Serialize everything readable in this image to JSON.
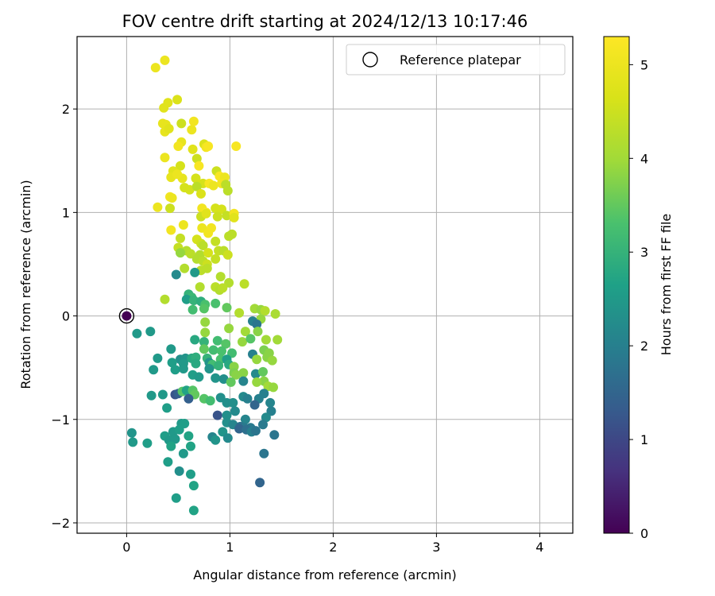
{
  "chart_data": {
    "type": "scatter",
    "title": "FOV centre drift starting at 2024/12/13 10:17:46",
    "xlabel": "Angular distance from reference (arcmin)",
    "ylabel": "Rotation from reference (arcmin)",
    "xlim": [
      -0.48,
      4.32
    ],
    "ylim": [
      -2.1,
      2.7
    ],
    "xticks": [
      0,
      1,
      2,
      3,
      4
    ],
    "yticks": [
      -2,
      -1,
      0,
      1,
      2
    ],
    "grid": true,
    "legend": {
      "label": "Reference platepar",
      "placement": "top-right"
    },
    "colorbar": {
      "label": "Hours from first FF file",
      "range": [
        0,
        5.3
      ],
      "ticks": [
        0,
        1,
        2,
        3,
        4,
        5
      ],
      "colormap": "viridis"
    },
    "reference_point": {
      "x": 0,
      "y": 0,
      "c": 0
    },
    "points": [
      [
        0.28,
        2.4,
        5.0
      ],
      [
        0.37,
        2.47,
        5.0
      ],
      [
        0.36,
        2.01,
        4.8
      ],
      [
        0.4,
        2.06,
        4.8
      ],
      [
        0.49,
        2.09,
        4.7
      ],
      [
        0.35,
        1.86,
        4.9
      ],
      [
        0.38,
        1.85,
        4.9
      ],
      [
        0.37,
        1.78,
        4.9
      ],
      [
        0.41,
        1.81,
        4.8
      ],
      [
        0.53,
        1.86,
        4.5
      ],
      [
        0.63,
        1.8,
        5.0
      ],
      [
        0.65,
        1.88,
        5.1
      ],
      [
        0.53,
        1.68,
        4.9
      ],
      [
        0.5,
        1.64,
        5.1
      ],
      [
        0.75,
        1.66,
        4.7
      ],
      [
        0.77,
        1.63,
        5.1
      ],
      [
        0.79,
        1.64,
        5.2
      ],
      [
        1.06,
        1.64,
        5.2
      ],
      [
        0.37,
        1.53,
        5.0
      ],
      [
        0.64,
        1.61,
        4.8
      ],
      [
        0.68,
        1.52,
        4.5
      ],
      [
        0.7,
        1.45,
        5.2
      ],
      [
        0.52,
        1.45,
        4.6
      ],
      [
        0.45,
        1.4,
        4.8
      ],
      [
        0.43,
        1.34,
        4.9
      ],
      [
        0.54,
        1.33,
        4.9
      ],
      [
        0.49,
        1.37,
        5.0
      ],
      [
        0.67,
        1.33,
        4.6
      ],
      [
        0.87,
        1.4,
        4.5
      ],
      [
        0.9,
        1.35,
        5.2
      ],
      [
        0.95,
        1.34,
        5.0
      ],
      [
        0.74,
        1.28,
        4.6
      ],
      [
        0.8,
        1.28,
        5.2
      ],
      [
        0.84,
        1.26,
        5.0
      ],
      [
        0.92,
        1.28,
        5.1
      ],
      [
        0.96,
        1.27,
        4.3
      ],
      [
        0.98,
        1.21,
        4.3
      ],
      [
        0.56,
        1.24,
        4.6
      ],
      [
        0.61,
        1.22,
        4.6
      ],
      [
        0.68,
        1.25,
        4.3
      ],
      [
        0.72,
        1.18,
        4.7
      ],
      [
        0.42,
        1.15,
        5.1
      ],
      [
        0.44,
        1.14,
        5.0
      ],
      [
        0.3,
        1.05,
        5.0
      ],
      [
        0.42,
        1.04,
        4.5
      ],
      [
        0.73,
        1.04,
        5.1
      ],
      [
        0.77,
        1.0,
        5.2
      ],
      [
        0.86,
        1.04,
        4.6
      ],
      [
        0.92,
        1.03,
        4.6
      ],
      [
        0.97,
        0.97,
        4.4
      ],
      [
        1.04,
        0.99,
        5.1
      ],
      [
        1.04,
        0.95,
        4.8
      ],
      [
        0.72,
        0.96,
        4.5
      ],
      [
        0.77,
        0.99,
        4.8
      ],
      [
        0.88,
        0.96,
        4.5
      ],
      [
        0.55,
        0.88,
        5.0
      ],
      [
        0.43,
        0.83,
        5.1
      ],
      [
        0.73,
        0.85,
        5.0
      ],
      [
        0.79,
        0.8,
        5.1
      ],
      [
        0.82,
        0.85,
        5.1
      ],
      [
        0.99,
        0.77,
        4.3
      ],
      [
        1.02,
        0.79,
        4.3
      ],
      [
        0.52,
        0.75,
        4.4
      ],
      [
        0.68,
        0.74,
        4.6
      ],
      [
        0.86,
        0.72,
        4.4
      ],
      [
        0.72,
        0.7,
        4.5
      ],
      [
        0.74,
        0.68,
        4.3
      ],
      [
        0.5,
        0.66,
        4.4
      ],
      [
        0.58,
        0.63,
        4.2
      ],
      [
        0.52,
        0.61,
        3.9
      ],
      [
        0.62,
        0.6,
        4.3
      ],
      [
        0.71,
        0.59,
        4.2
      ],
      [
        0.79,
        0.61,
        4.6
      ],
      [
        0.89,
        0.63,
        4.4
      ],
      [
        0.94,
        0.63,
        4.3
      ],
      [
        0.98,
        0.59,
        4.5
      ],
      [
        0.68,
        0.55,
        4.2
      ],
      [
        0.74,
        0.53,
        4.3
      ],
      [
        0.78,
        0.5,
        4.5
      ],
      [
        0.86,
        0.55,
        4.4
      ],
      [
        0.56,
        0.46,
        4.2
      ],
      [
        0.72,
        0.44,
        4.3
      ],
      [
        0.78,
        0.46,
        4.3
      ],
      [
        0.66,
        0.42,
        2.5
      ],
      [
        0.48,
        0.4,
        2.2
      ],
      [
        0.91,
        0.38,
        4.2
      ],
      [
        0.99,
        0.32,
        4.2
      ],
      [
        1.14,
        0.31,
        4.3
      ],
      [
        0.86,
        0.28,
        4.3
      ],
      [
        0.9,
        0.25,
        4.2
      ],
      [
        0.93,
        0.27,
        4.3
      ],
      [
        0.71,
        0.28,
        4.2
      ],
      [
        0.6,
        0.21,
        3.0
      ],
      [
        0.63,
        0.18,
        3.1
      ],
      [
        0.37,
        0.16,
        4.2
      ],
      [
        0.58,
        0.16,
        2.6
      ],
      [
        0.65,
        0.15,
        3.0
      ],
      [
        0.72,
        0.14,
        2.9
      ],
      [
        0.76,
        0.11,
        3.3
      ],
      [
        0.64,
        0.06,
        3.2
      ],
      [
        0.75,
        0.07,
        3.4
      ],
      [
        0.86,
        0.12,
        3.3
      ],
      [
        0.97,
        0.08,
        3.5
      ],
      [
        1.09,
        0.03,
        4.2
      ],
      [
        1.24,
        0.07,
        4.0
      ],
      [
        1.3,
        0.06,
        3.9
      ],
      [
        1.34,
        0.05,
        4.2
      ],
      [
        1.44,
        0.02,
        4.1
      ],
      [
        1.3,
        -0.03,
        3.9
      ],
      [
        1.22,
        -0.05,
        2.0
      ],
      [
        1.26,
        -0.08,
        1.8
      ],
      [
        0.76,
        -0.06,
        3.9
      ],
      [
        1.15,
        -0.15,
        4.0
      ],
      [
        1.27,
        -0.15,
        3.8
      ],
      [
        0.99,
        -0.12,
        3.9
      ],
      [
        0.76,
        -0.16,
        3.9
      ],
      [
        0.1,
        -0.17,
        2.5
      ],
      [
        0.23,
        -0.15,
        2.5
      ],
      [
        0.66,
        -0.23,
        2.8
      ],
      [
        0.75,
        -0.25,
        3.0
      ],
      [
        0.88,
        -0.24,
        3.2
      ],
      [
        0.96,
        -0.27,
        3.4
      ],
      [
        1.12,
        -0.25,
        3.9
      ],
      [
        1.2,
        -0.22,
        3.4
      ],
      [
        1.35,
        -0.23,
        4.0
      ],
      [
        1.46,
        -0.23,
        4.0
      ],
      [
        0.43,
        -0.32,
        2.5
      ],
      [
        0.75,
        -0.32,
        3.5
      ],
      [
        0.84,
        -0.33,
        3.2
      ],
      [
        0.92,
        -0.34,
        3.3
      ],
      [
        1.02,
        -0.36,
        3.2
      ],
      [
        1.22,
        -0.37,
        2.0
      ],
      [
        1.33,
        -0.33,
        3.7
      ],
      [
        1.38,
        -0.36,
        3.8
      ],
      [
        0.3,
        -0.41,
        2.5
      ],
      [
        0.52,
        -0.42,
        2.3
      ],
      [
        0.57,
        -0.41,
        2.4
      ],
      [
        0.63,
        -0.41,
        2.8
      ],
      [
        0.67,
        -0.4,
        2.9
      ],
      [
        0.78,
        -0.41,
        3.0
      ],
      [
        0.91,
        -0.42,
        3.3
      ],
      [
        0.97,
        -0.42,
        2.6
      ],
      [
        1.26,
        -0.42,
        3.9
      ],
      [
        1.36,
        -0.4,
        3.8
      ],
      [
        1.41,
        -0.43,
        3.9
      ],
      [
        0.44,
        -0.45,
        2.6
      ],
      [
        0.55,
        -0.46,
        2.5
      ],
      [
        0.67,
        -0.46,
        2.8
      ],
      [
        0.8,
        -0.45,
        2.4
      ],
      [
        0.83,
        -0.47,
        3.2
      ],
      [
        0.89,
        -0.48,
        3.0
      ],
      [
        0.99,
        -0.47,
        2.8
      ],
      [
        1.04,
        -0.49,
        3.8
      ],
      [
        0.26,
        -0.52,
        2.5
      ],
      [
        0.47,
        -0.52,
        2.6
      ],
      [
        0.55,
        -0.51,
        2.5
      ],
      [
        0.8,
        -0.51,
        2.4
      ],
      [
        1.04,
        -0.55,
        3.7
      ],
      [
        1.13,
        -0.55,
        3.8
      ],
      [
        1.25,
        -0.56,
        2.2
      ],
      [
        1.32,
        -0.54,
        3.5
      ],
      [
        0.64,
        -0.57,
        2.6
      ],
      [
        0.7,
        -0.59,
        2.5
      ],
      [
        1.06,
        -0.57,
        3.8
      ],
      [
        1.33,
        -0.63,
        3.8
      ],
      [
        0.86,
        -0.6,
        2.4
      ],
      [
        0.94,
        -0.61,
        2.3
      ],
      [
        1.01,
        -0.64,
        3.5
      ],
      [
        1.13,
        -0.63,
        2.1
      ],
      [
        1.26,
        -0.64,
        3.9
      ],
      [
        1.37,
        -0.68,
        4.0
      ],
      [
        1.42,
        -0.69,
        3.9
      ],
      [
        0.47,
        -0.76,
        1.2
      ],
      [
        0.5,
        -0.75,
        1.4
      ],
      [
        0.35,
        -0.76,
        2.5
      ],
      [
        0.24,
        -0.77,
        2.5
      ],
      [
        0.54,
        -0.73,
        3.4
      ],
      [
        0.58,
        -0.72,
        2.7
      ],
      [
        0.64,
        -0.72,
        3.4
      ],
      [
        0.66,
        -0.76,
        3.5
      ],
      [
        0.6,
        -0.8,
        1.4
      ],
      [
        0.75,
        -0.8,
        3.4
      ],
      [
        0.81,
        -0.82,
        3.2
      ],
      [
        0.91,
        -0.79,
        2.3
      ],
      [
        0.97,
        -0.84,
        2.3
      ],
      [
        1.03,
        -0.84,
        2.3
      ],
      [
        1.13,
        -0.78,
        2.2
      ],
      [
        1.17,
        -0.8,
        2.0
      ],
      [
        1.28,
        -0.8,
        2.0
      ],
      [
        1.33,
        -0.75,
        2.0
      ],
      [
        1.39,
        -0.84,
        2.1
      ],
      [
        1.4,
        -0.92,
        2.0
      ],
      [
        1.24,
        -0.86,
        1.5
      ],
      [
        0.39,
        -0.89,
        2.6
      ],
      [
        0.88,
        -0.96,
        1.2
      ],
      [
        0.97,
        -0.96,
        2.3
      ],
      [
        1.05,
        -0.92,
        2.2
      ],
      [
        1.35,
        -0.98,
        2.2
      ],
      [
        1.15,
        -1.0,
        2.1
      ],
      [
        0.53,
        -1.04,
        2.5
      ],
      [
        0.56,
        -1.04,
        2.6
      ],
      [
        0.45,
        -1.12,
        2.5
      ],
      [
        0.51,
        -1.1,
        2.6
      ],
      [
        0.97,
        -1.03,
        2.3
      ],
      [
        1.03,
        -1.05,
        2.1
      ],
      [
        1.1,
        -1.07,
        1.7
      ],
      [
        1.2,
        -1.08,
        1.9
      ],
      [
        1.32,
        -1.05,
        1.9
      ],
      [
        1.14,
        -1.08,
        1.9
      ],
      [
        0.05,
        -1.13,
        2.4
      ],
      [
        0.06,
        -1.22,
        2.5
      ],
      [
        0.2,
        -1.23,
        2.6
      ],
      [
        0.37,
        -1.16,
        2.6
      ],
      [
        0.41,
        -1.2,
        2.5
      ],
      [
        0.47,
        -1.19,
        2.5
      ],
      [
        0.6,
        -1.16,
        2.7
      ],
      [
        0.62,
        -1.26,
        2.7
      ],
      [
        0.43,
        -1.26,
        2.7
      ],
      [
        0.83,
        -1.17,
        2.1
      ],
      [
        0.86,
        -1.2,
        2.4
      ],
      [
        0.93,
        -1.12,
        2.4
      ],
      [
        0.98,
        -1.18,
        2.2
      ],
      [
        1.09,
        -1.09,
        1.5
      ],
      [
        1.16,
        -1.1,
        1.7
      ],
      [
        1.21,
        -1.12,
        2.0
      ],
      [
        1.25,
        -1.11,
        1.8
      ],
      [
        1.43,
        -1.15,
        1.8
      ],
      [
        0.55,
        -1.33,
        2.5
      ],
      [
        0.4,
        -1.41,
        2.6
      ],
      [
        0.51,
        -1.5,
        2.3
      ],
      [
        0.62,
        -1.53,
        2.6
      ],
      [
        1.33,
        -1.33,
        1.8
      ],
      [
        1.29,
        -1.61,
        1.5
      ],
      [
        0.48,
        -1.76,
        2.6
      ],
      [
        0.65,
        -1.64,
        2.7
      ],
      [
        0.65,
        -1.88,
        2.7
      ]
    ]
  }
}
